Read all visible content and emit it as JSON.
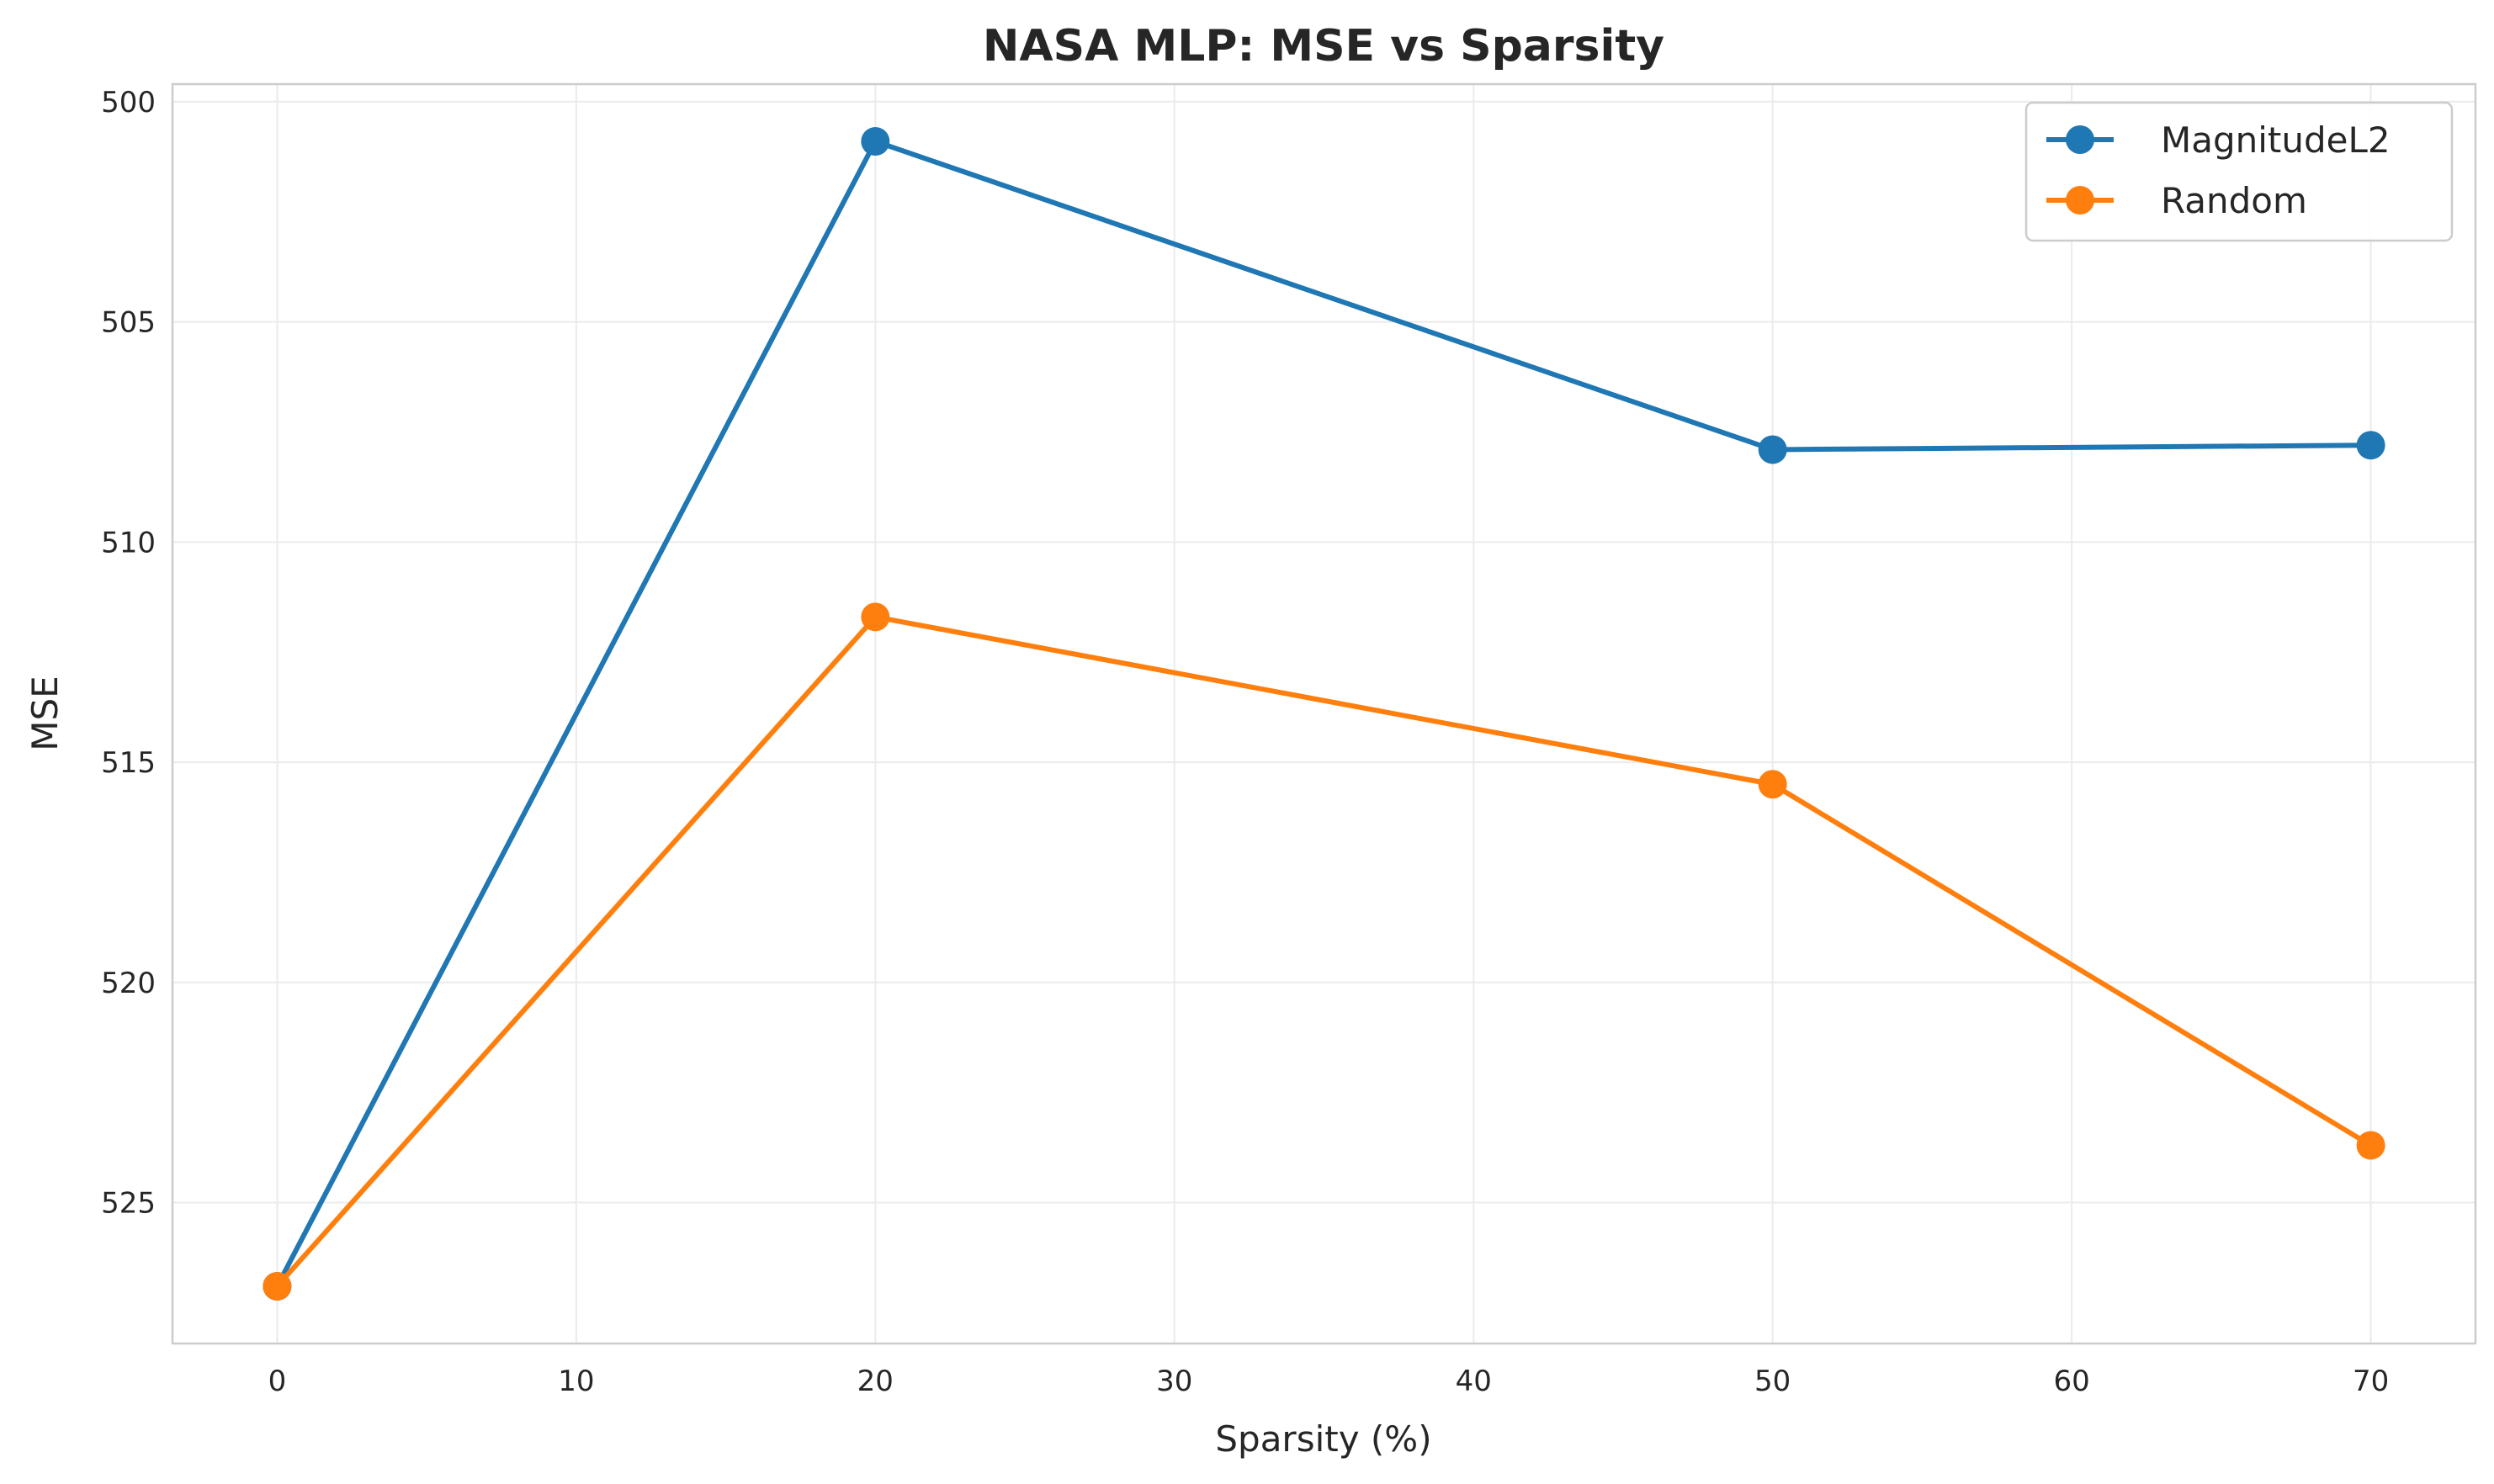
{
  "chart_data": {
    "type": "line",
    "title": "NASA MLP: MSE vs Sparsity",
    "xlabel": "Sparsity (%)",
    "ylabel": "MSE",
    "x": [
      0,
      20,
      50,
      70
    ],
    "series": [
      {
        "name": "MagnitudeL2",
        "color": "#1f77b4",
        "values": [
          526.9,
          500.9,
          507.9,
          507.8
        ]
      },
      {
        "name": "Random",
        "color": "#ff7f0e",
        "values": [
          526.9,
          511.7,
          515.5,
          523.7
        ]
      }
    ],
    "xlim": [
      -3.5,
      73.5
    ],
    "ylim": [
      528.2,
      499.6
    ],
    "y_inverted": true,
    "xticks": [
      0,
      10,
      20,
      30,
      40,
      50,
      60,
      70
    ],
    "yticks": [
      500,
      505,
      510,
      515,
      520,
      525
    ],
    "grid": true,
    "legend_position": "top-right"
  }
}
